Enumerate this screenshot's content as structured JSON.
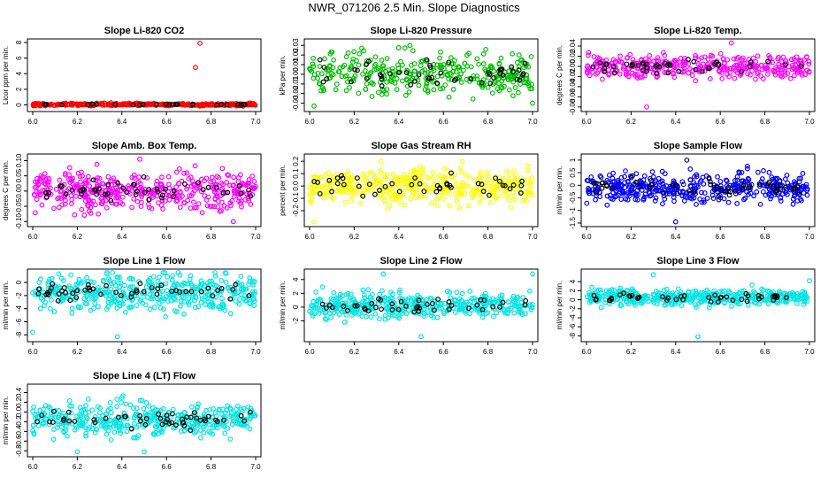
{
  "page_title": "NWR_071206  2.5 Min. Slope Diagnostics",
  "chart_data": [
    {
      "type": "scatter",
      "title": "Slope Li-820 CO2",
      "ylabel": "Licor ppm per min.",
      "xlim": [
        6.0,
        7.0
      ],
      "ylim": [
        -0.4,
        8.0
      ],
      "yticks": [
        0,
        2,
        4,
        6,
        8
      ],
      "ytick_labels": [
        "0",
        "2",
        "4",
        "6",
        "8"
      ],
      "xticks": [
        6.0,
        6.2,
        6.4,
        6.6,
        6.8,
        7.0
      ],
      "xtick_labels": [
        "6.0",
        "6.2",
        "6.4",
        "6.6",
        "6.8",
        "7.0"
      ],
      "color": "#ff0000",
      "n_points": 320,
      "n_highlight": 30,
      "center": 0.05,
      "spread": 0.08,
      "outliers": [
        [
          6.75,
          7.9
        ],
        [
          6.73,
          4.8
        ]
      ]
    },
    {
      "type": "scatter",
      "title": "Slope Li-820 Pressure",
      "ylabel": "kPa per min.",
      "xlim": [
        6.0,
        7.0
      ],
      "ylim": [
        -0.035,
        0.033
      ],
      "yticks": [
        -0.03,
        -0.02,
        -0.01,
        0.0,
        0.01,
        0.02,
        0.03
      ],
      "ytick_labels": [
        "-0.03",
        "-0.02",
        "-0.01",
        "0.00",
        "0.01",
        "0.02",
        "0.03"
      ],
      "xticks": [
        6.0,
        6.2,
        6.4,
        6.6,
        6.8,
        7.0
      ],
      "xtick_labels": [
        "6.0",
        "6.2",
        "6.4",
        "6.6",
        "6.8",
        "7.0"
      ],
      "color": "#00c000",
      "n_points": 340,
      "n_highlight": 50,
      "center": 0.0,
      "spread": 0.011,
      "outliers": [
        [
          6.45,
          0.03
        ],
        [
          6.02,
          -0.033
        ],
        [
          7.0,
          -0.03
        ]
      ]
    },
    {
      "type": "scatter",
      "title": "Slope Li-820 Temp.",
      "ylabel": "degrees C per min.",
      "xlim": [
        6.0,
        7.0
      ],
      "ylim": [
        -0.082,
        0.047
      ],
      "yticks": [
        -0.08,
        -0.06,
        -0.04,
        -0.02,
        0.0,
        0.02,
        0.04
      ],
      "ytick_labels": [
        "-0.08",
        "-0.06",
        "-0.04",
        "-0.02",
        "0.00",
        "0.02",
        "0.04"
      ],
      "xticks": [
        6.0,
        6.2,
        6.4,
        6.6,
        6.8,
        7.0
      ],
      "xtick_labels": [
        "6.0",
        "6.2",
        "6.4",
        "6.6",
        "6.8",
        "7.0"
      ],
      "color": "#ff00ff",
      "n_points": 360,
      "n_highlight": 45,
      "center": 0.0,
      "spread": 0.012,
      "outliers": [
        [
          6.27,
          -0.08
        ],
        [
          6.65,
          0.046
        ]
      ]
    },
    {
      "type": "scatter",
      "title": "Slope Amb. Box Temp.",
      "ylabel": "degrees C per min.",
      "xlim": [
        6.0,
        7.0
      ],
      "ylim": [
        -0.105,
        0.11
      ],
      "yticks": [
        -0.1,
        -0.05,
        0.0,
        0.05,
        0.1
      ],
      "ytick_labels": [
        "-0.10",
        "-0.05",
        "0.00",
        "0.05",
        "0.10"
      ],
      "xticks": [
        6.0,
        6.2,
        6.4,
        6.6,
        6.8,
        7.0
      ],
      "xtick_labels": [
        "6.0",
        "6.2",
        "6.4",
        "6.6",
        "6.8",
        "7.0"
      ],
      "color": "#ff00ff",
      "n_points": 420,
      "n_highlight": 50,
      "center": 0.0,
      "spread": 0.03,
      "outliers": [
        [
          6.48,
          0.105
        ],
        [
          6.9,
          -0.1
        ]
      ]
    },
    {
      "type": "scatter",
      "title": "Slope Gas Stream RH",
      "ylabel": "percent per min.",
      "xlim": [
        6.0,
        7.0
      ],
      "ylim": [
        -0.3,
        0.23
      ],
      "yticks": [
        -0.2,
        -0.1,
        0.0,
        0.1,
        0.2
      ],
      "ytick_labels": [
        "-0.2",
        "-0.1",
        "0.0",
        "0.1",
        "0.2"
      ],
      "xticks": [
        6.0,
        6.2,
        6.4,
        6.6,
        6.8,
        7.0
      ],
      "xtick_labels": [
        "6.0",
        "6.2",
        "6.4",
        "6.6",
        "6.8",
        "7.0"
      ],
      "color": "#ffff00",
      "n_points": 420,
      "n_highlight": 45,
      "center": 0.0,
      "spread": 0.07,
      "outliers": [
        [
          6.02,
          -0.29
        ],
        [
          6.32,
          0.2
        ]
      ]
    },
    {
      "type": "scatter",
      "title": "Slope Sample Flow",
      "ylabel": "ml/min per min.",
      "xlim": [
        6.0,
        7.0
      ],
      "ylim": [
        -1.5,
        1.1
      ],
      "yticks": [
        -1.5,
        -1.0,
        -0.5,
        0.0,
        0.5,
        1.0
      ],
      "ytick_labels": [
        "-1.5",
        "-1",
        "-0.5",
        "0",
        "0.5",
        "1"
      ],
      "xticks": [
        6.0,
        6.2,
        6.4,
        6.6,
        6.8,
        7.0
      ],
      "xtick_labels": [
        "6.0",
        "6.2",
        "6.4",
        "6.6",
        "6.8",
        "7.0"
      ],
      "color": "#0000ff",
      "n_points": 420,
      "n_highlight": 50,
      "center": -0.1,
      "spread": 0.3,
      "outliers": [
        [
          6.4,
          -1.45
        ],
        [
          6.45,
          1.0
        ]
      ]
    },
    {
      "type": "scatter",
      "title": "Slope Line 1 Flow",
      "ylabel": "ml/min per min.",
      "xlim": [
        6.0,
        7.0
      ],
      "ylim": [
        -8.5,
        1.5
      ],
      "yticks": [
        -8,
        -6,
        -4,
        -2,
        0
      ],
      "ytick_labels": [
        "-8",
        "-6",
        "-4",
        "-2",
        "0"
      ],
      "xticks": [
        6.0,
        6.2,
        6.4,
        6.6,
        6.8,
        7.0
      ],
      "xtick_labels": [
        "6.0",
        "6.2",
        "6.4",
        "6.6",
        "6.8",
        "7.0"
      ],
      "color": "#00e5e5",
      "n_points": 420,
      "n_highlight": 50,
      "center": -1.5,
      "spread": 1.4,
      "outliers": [
        [
          6.38,
          -8.3
        ],
        [
          6.0,
          -7.6
        ]
      ]
    },
    {
      "type": "scatter",
      "title": "Slope Line 2 Flow",
      "ylabel": "ml/min per min.",
      "xlim": [
        6.0,
        7.0
      ],
      "ylim": [
        -4.5,
        5.0
      ],
      "yticks": [
        -2,
        0,
        2,
        4
      ],
      "ytick_labels": [
        "-2",
        "0",
        "2",
        "4"
      ],
      "xticks": [
        6.0,
        6.2,
        6.4,
        6.6,
        6.8,
        7.0
      ],
      "xtick_labels": [
        "6.0",
        "6.2",
        "6.4",
        "6.6",
        "6.8",
        "7.0"
      ],
      "color": "#00e5e5",
      "n_points": 420,
      "n_highlight": 45,
      "center": 0.3,
      "spread": 0.9,
      "outliers": [
        [
          6.33,
          4.8
        ],
        [
          6.5,
          -4.3
        ],
        [
          7.0,
          4.8
        ]
      ]
    },
    {
      "type": "scatter",
      "title": "Slope Line 3 Flow",
      "ylabel": "ml/min per min.",
      "xlim": [
        6.0,
        7.0
      ],
      "ylim": [
        -8.5,
        6.0
      ],
      "yticks": [
        -8,
        -6,
        -4,
        -2,
        0,
        2,
        4
      ],
      "ytick_labels": [
        "-8",
        "-6",
        "-4",
        "-2",
        "0",
        "2",
        "4"
      ],
      "xticks": [
        6.0,
        6.2,
        6.4,
        6.6,
        6.8,
        7.0
      ],
      "xtick_labels": [
        "6.0",
        "6.2",
        "6.4",
        "6.6",
        "6.8",
        "7.0"
      ],
      "color": "#00e5e5",
      "n_points": 420,
      "n_highlight": 45,
      "center": 0.5,
      "spread": 0.9,
      "outliers": [
        [
          6.5,
          -8.2
        ],
        [
          6.3,
          5.5
        ],
        [
          7.0,
          4.2
        ]
      ]
    },
    {
      "type": "scatter",
      "title": "Slope Line 4 (LT) Flow",
      "ylabel": "ml/min per min.",
      "xlim": [
        6.0,
        7.0
      ],
      "ylim": [
        -0.85,
        0.5
      ],
      "yticks": [
        -0.8,
        -0.6,
        -0.4,
        -0.2,
        0.0,
        0.2,
        0.4
      ],
      "ytick_labels": [
        "-0.8",
        "-0.6",
        "-0.4",
        "-0.2",
        "0.0",
        "0.2",
        "0.4"
      ],
      "xticks": [
        6.0,
        6.2,
        6.4,
        6.6,
        6.8,
        7.0
      ],
      "xtick_labels": [
        "6.0",
        "6.2",
        "6.4",
        "6.6",
        "6.8",
        "7.0"
      ],
      "color": "#00e5e5",
      "n_points": 420,
      "n_highlight": 50,
      "center": -0.15,
      "spread": 0.17,
      "outliers": [
        [
          6.5,
          -0.82
        ],
        [
          6.2,
          -0.82
        ]
      ]
    }
  ]
}
